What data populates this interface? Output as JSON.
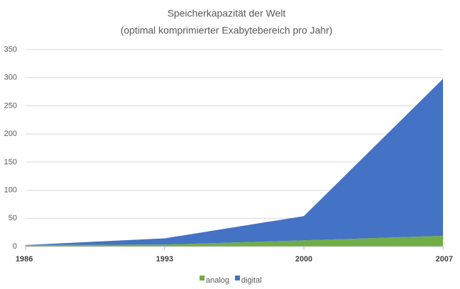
{
  "chart_data": {
    "type": "area",
    "stacked": true,
    "title": "Speicherkapazität der Welt",
    "subtitle": "(optimal komprimierter Exabytebereich pro Jahr)",
    "x": [
      1986,
      1993,
      2000,
      2007
    ],
    "xlim": [
      1986,
      2007
    ],
    "xticks": [
      1986,
      1993,
      2000,
      2007
    ],
    "series": [
      {
        "name": "analog",
        "color": "#70ad47",
        "values": [
          2.6,
          3.5,
          11,
          19
        ]
      },
      {
        "name": "digital",
        "color": "#4472c4",
        "values": [
          0.02,
          11,
          43,
          279
        ]
      }
    ],
    "ylim": [
      0,
      350
    ],
    "yticks": [
      0,
      50,
      100,
      150,
      200,
      250,
      300,
      350
    ],
    "grid": true,
    "legend": "bottom"
  }
}
